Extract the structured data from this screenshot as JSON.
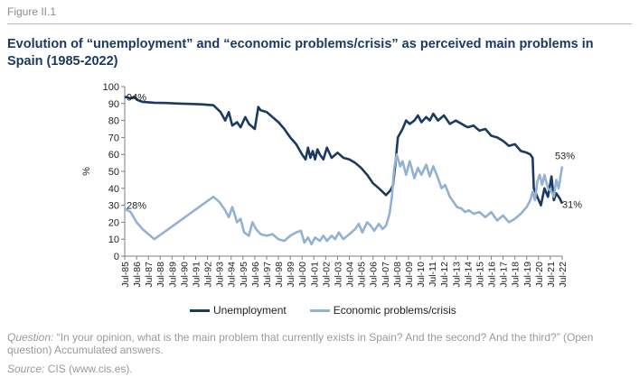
{
  "figure_label": "Figure II.1",
  "title": "Evolution of “unemployment” and “economic problems/crisis” as perceived main problems in Spain (1985-2022)",
  "question_label": "Question:",
  "question_text": " “In your opinion, what is the main problem that currently exists in Spain? And the second? And the third?” (Open question) Accumulated answers.",
  "source_label": "Source:",
  "source_text": " CIS (www.cis.es).",
  "colors": {
    "unemployment": "#1b3a5f",
    "economic": "#93b1d3",
    "axis": "#7f7f7f",
    "text": "#1f1f1f"
  },
  "chart_data": {
    "type": "line",
    "ylabel": "%",
    "ylim": [
      0,
      100
    ],
    "yticks": [
      0,
      10,
      20,
      30,
      40,
      50,
      60,
      70,
      80,
      90,
      100
    ],
    "xlim": [
      1985.5,
      2022.5
    ],
    "xtick_labels": [
      "Jul-85",
      "Jul-86",
      "Jul-87",
      "Jul-88",
      "Jul-89",
      "Jul-90",
      "Jul-91",
      "Jul-92",
      "Jul-93",
      "Jul-94",
      "Jul-95",
      "Jul-96",
      "Jul-97",
      "Jul-98",
      "Jul-99",
      "Jul-00",
      "Jul-01",
      "Jul-02",
      "Jul-03",
      "Jul-04",
      "Jul-05",
      "Jul-06",
      "Jul-07",
      "Jul-08",
      "Jul-09",
      "Jul-10",
      "Jul-11",
      "Jul-12",
      "Jul-13",
      "Jul-14",
      "Jul-15",
      "Jul-16",
      "Jul-17",
      "Jul-18",
      "Jul-19",
      "Jul-20",
      "Jul-21",
      "Jul-22"
    ],
    "annotations": [
      {
        "text": "94%",
        "x": 1985.5,
        "y": 94,
        "anchor": "start",
        "dx": 2,
        "dy": 4
      },
      {
        "text": "28%",
        "x": 1985.5,
        "y": 28,
        "anchor": "start",
        "dx": 2,
        "dy": 0
      },
      {
        "text": "53%",
        "x": 2022.5,
        "y": 53,
        "anchor": "start",
        "dx": -8,
        "dy": -8
      },
      {
        "text": "31%",
        "x": 2022.5,
        "y": 31,
        "anchor": "start",
        "dx": 0,
        "dy": 5
      }
    ],
    "series": [
      {
        "name": "Unemployment",
        "color": "#1b3a5f",
        "points": [
          [
            1985.5,
            94
          ],
          [
            1986,
            93
          ],
          [
            1986.3,
            94
          ],
          [
            1986.6,
            92
          ],
          [
            1987,
            91
          ],
          [
            1988,
            90.5
          ],
          [
            1989,
            90.3
          ],
          [
            1990,
            90
          ],
          [
            1991,
            89.8
          ],
          [
            1992,
            89.5
          ],
          [
            1993,
            89
          ],
          [
            1993.6,
            85
          ],
          [
            1994,
            80
          ],
          [
            1994.3,
            85
          ],
          [
            1994.6,
            77
          ],
          [
            1995,
            79
          ],
          [
            1995.3,
            76
          ],
          [
            1995.7,
            82
          ],
          [
            1996,
            78
          ],
          [
            1996.5,
            75
          ],
          [
            1996.8,
            88
          ],
          [
            1997,
            86
          ],
          [
            1997.5,
            85
          ],
          [
            1998,
            82
          ],
          [
            1998.5,
            79
          ],
          [
            1999,
            75
          ],
          [
            1999.5,
            70
          ],
          [
            2000,
            66
          ],
          [
            2000.5,
            60
          ],
          [
            2000.8,
            57
          ],
          [
            2001,
            64
          ],
          [
            2001.2,
            58
          ],
          [
            2001.4,
            62
          ],
          [
            2001.6,
            57
          ],
          [
            2001.8,
            63
          ],
          [
            2002,
            60
          ],
          [
            2002.3,
            57
          ],
          [
            2002.6,
            64
          ],
          [
            2003,
            58
          ],
          [
            2003.5,
            61
          ],
          [
            2004,
            58
          ],
          [
            2004.5,
            57
          ],
          [
            2005,
            55
          ],
          [
            2005.5,
            52
          ],
          [
            2006,
            48
          ],
          [
            2006.5,
            43
          ],
          [
            2007,
            40
          ],
          [
            2007.3,
            38
          ],
          [
            2007.6,
            36
          ],
          [
            2008,
            39
          ],
          [
            2008.2,
            42
          ],
          [
            2008.4,
            55
          ],
          [
            2008.6,
            70
          ],
          [
            2009,
            75
          ],
          [
            2009.3,
            80
          ],
          [
            2009.6,
            78
          ],
          [
            2010,
            80
          ],
          [
            2010.3,
            83
          ],
          [
            2010.6,
            79
          ],
          [
            2011,
            82
          ],
          [
            2011.3,
            80
          ],
          [
            2011.6,
            84
          ],
          [
            2012,
            80
          ],
          [
            2012.5,
            83
          ],
          [
            2013,
            78
          ],
          [
            2013.5,
            80
          ],
          [
            2014,
            78
          ],
          [
            2014.5,
            76
          ],
          [
            2015,
            77
          ],
          [
            2015.5,
            74
          ],
          [
            2016,
            75
          ],
          [
            2016.5,
            71
          ],
          [
            2017,
            70
          ],
          [
            2017.5,
            68
          ],
          [
            2018,
            65
          ],
          [
            2018.5,
            66
          ],
          [
            2019,
            62
          ],
          [
            2019.5,
            61
          ],
          [
            2019.8,
            60
          ],
          [
            2020,
            58
          ],
          [
            2020.1,
            40
          ],
          [
            2020.4,
            35
          ],
          [
            2020.7,
            30
          ],
          [
            2021,
            40
          ],
          [
            2021.3,
            35
          ],
          [
            2021.6,
            47
          ],
          [
            2021.8,
            33
          ],
          [
            2022,
            37
          ],
          [
            2022.3,
            34
          ],
          [
            2022.5,
            31
          ]
        ]
      },
      {
        "name": "Economic problems/crisis",
        "color": "#93b1d3",
        "points": [
          [
            1985.5,
            28
          ],
          [
            1986,
            26
          ],
          [
            1986.5,
            20
          ],
          [
            1987,
            16
          ],
          [
            1987.5,
            13
          ],
          [
            1988,
            10
          ],
          [
            1989,
            15
          ],
          [
            1990,
            20
          ],
          [
            1991,
            25
          ],
          [
            1992,
            30
          ],
          [
            1993,
            35
          ],
          [
            1993.5,
            32
          ],
          [
            1994,
            27
          ],
          [
            1994.3,
            23
          ],
          [
            1994.6,
            29
          ],
          [
            1995,
            20
          ],
          [
            1995.3,
            22
          ],
          [
            1995.6,
            14
          ],
          [
            1996,
            12
          ],
          [
            1996.3,
            20
          ],
          [
            1996.6,
            16
          ],
          [
            1997,
            13
          ],
          [
            1997.5,
            12
          ],
          [
            1998,
            13
          ],
          [
            1998.5,
            10
          ],
          [
            1999,
            9
          ],
          [
            1999.5,
            12
          ],
          [
            2000,
            14
          ],
          [
            2000.4,
            15
          ],
          [
            2000.7,
            8
          ],
          [
            2001,
            11
          ],
          [
            2001.3,
            7
          ],
          [
            2001.6,
            11
          ],
          [
            2002,
            9
          ],
          [
            2002.3,
            12
          ],
          [
            2002.6,
            9
          ],
          [
            2003,
            12
          ],
          [
            2003.3,
            10
          ],
          [
            2003.6,
            14
          ],
          [
            2004,
            10
          ],
          [
            2004.5,
            13
          ],
          [
            2005,
            16
          ],
          [
            2005.3,
            19
          ],
          [
            2005.6,
            14
          ],
          [
            2006,
            20
          ],
          [
            2006.3,
            18
          ],
          [
            2006.6,
            15
          ],
          [
            2007,
            19
          ],
          [
            2007.3,
            16
          ],
          [
            2007.6,
            18
          ],
          [
            2007.9,
            25
          ],
          [
            2008.1,
            35
          ],
          [
            2008.3,
            52
          ],
          [
            2008.5,
            60
          ],
          [
            2008.8,
            53
          ],
          [
            2009,
            56
          ],
          [
            2009.3,
            48
          ],
          [
            2009.6,
            56
          ],
          [
            2010,
            46
          ],
          [
            2010.3,
            52
          ],
          [
            2010.6,
            48
          ],
          [
            2011,
            54
          ],
          [
            2011.3,
            47
          ],
          [
            2011.6,
            53
          ],
          [
            2012,
            46
          ],
          [
            2012.3,
            40
          ],
          [
            2012.6,
            42
          ],
          [
            2013,
            35
          ],
          [
            2013.3,
            32
          ],
          [
            2013.6,
            29
          ],
          [
            2014,
            28
          ],
          [
            2014.3,
            26
          ],
          [
            2014.6,
            27
          ],
          [
            2015,
            25
          ],
          [
            2015.5,
            26
          ],
          [
            2016,
            23
          ],
          [
            2016.5,
            26
          ],
          [
            2017,
            21
          ],
          [
            2017.5,
            24
          ],
          [
            2018,
            20
          ],
          [
            2018.5,
            22
          ],
          [
            2019,
            25
          ],
          [
            2019.5,
            29
          ],
          [
            2019.8,
            33
          ],
          [
            2020,
            38
          ],
          [
            2020.2,
            33
          ],
          [
            2020.4,
            44
          ],
          [
            2020.6,
            48
          ],
          [
            2020.8,
            42
          ],
          [
            2021,
            48
          ],
          [
            2021.3,
            40
          ],
          [
            2021.6,
            38
          ],
          [
            2021.8,
            35
          ],
          [
            2022,
            45
          ],
          [
            2022.2,
            40
          ],
          [
            2022.5,
            53
          ]
        ]
      }
    ]
  }
}
